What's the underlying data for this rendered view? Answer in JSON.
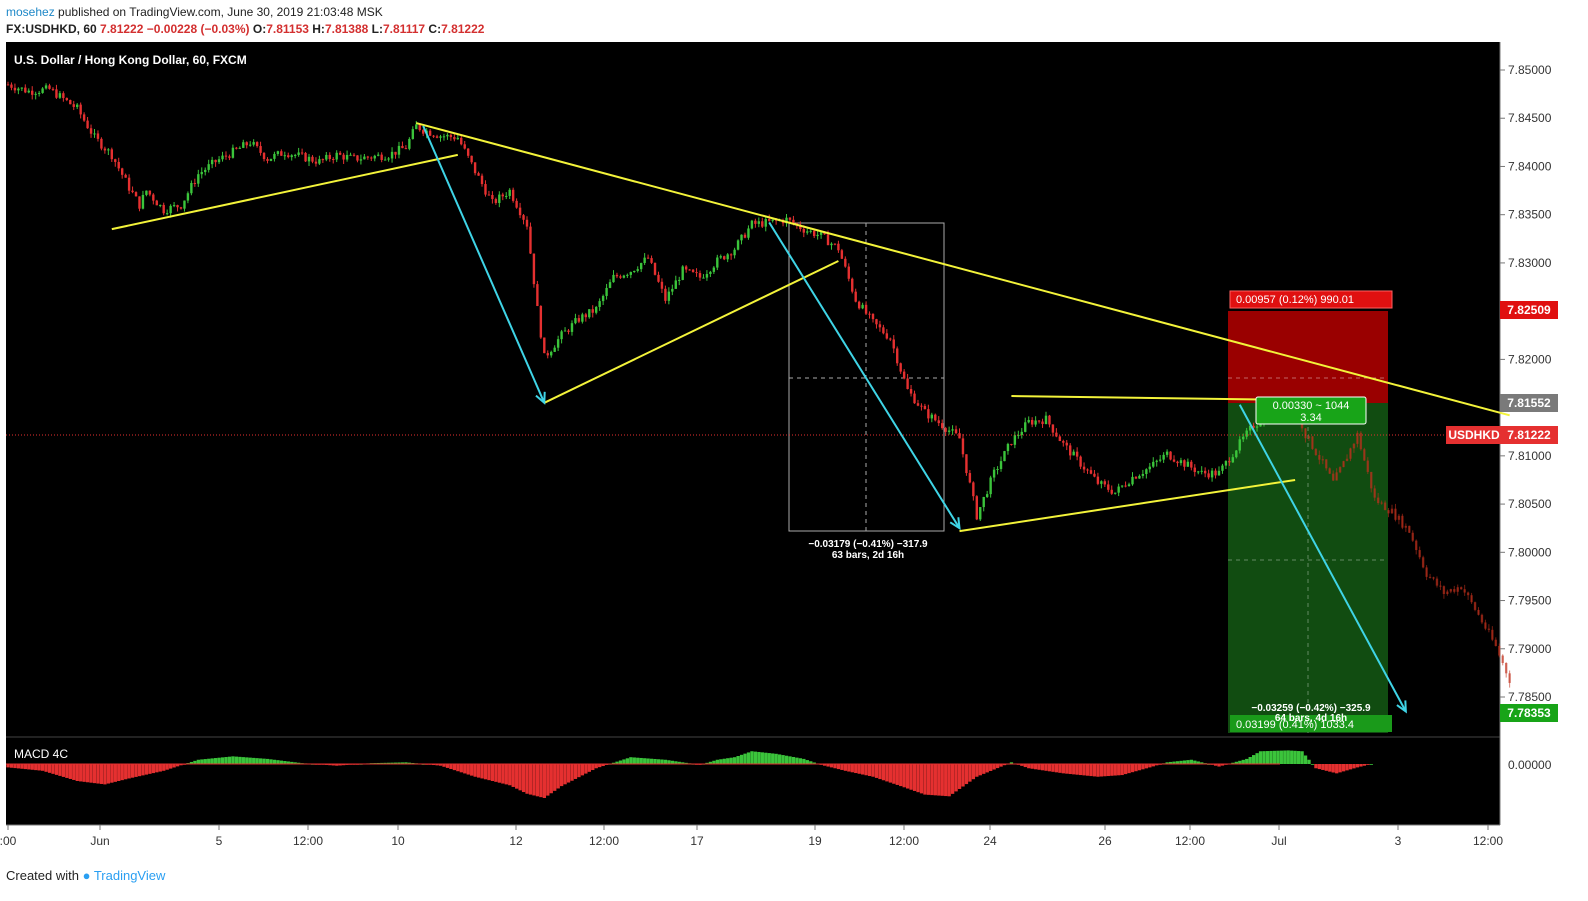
{
  "header": {
    "author": "mosehez",
    "published": "published on TradingView.com, June 30, 2019 21:03:48 MSK",
    "symbol": "FX:USDHKD, 60",
    "last": "7.81222",
    "change": "−0.00228 (−0.03%)",
    "o_label": "O:",
    "o_value": "7.81153",
    "h_label": "H:",
    "h_value": "7.81388",
    "l_label": "L:",
    "l_value": "7.81117",
    "c_label": "C:",
    "c_value": "7.81222"
  },
  "chart": {
    "title": "U.S. Dollar / Hong Kong Dollar, 60, FXCM",
    "indicator_label": "MACD 4C",
    "price_ticks": [
      "7.85000",
      "7.84500",
      "7.84000",
      "7.83500",
      "7.83000",
      "7.82500",
      "7.82000",
      "7.81500",
      "7.81000",
      "7.80500",
      "7.80000",
      "7.79500",
      "7.79000",
      "7.78500"
    ],
    "macd_tick": "0.00000",
    "time_ticks": [
      ":00",
      "Jun",
      "5",
      "12:00",
      "10",
      "12",
      "12:00",
      "17",
      "19",
      "12:00",
      "24",
      "26",
      "12:00",
      "Jul",
      "3",
      "12:00"
    ],
    "price_badges": {
      "stop": "7.82509",
      "entry": "7.81552",
      "current_symbol": "USDHKD",
      "current": "7.81222",
      "target": "7.78353"
    },
    "position": {
      "risk_label": "0.00957 (0.12%) 990.01",
      "entry_label": "0.00330 ~ 1044",
      "ratio_label": "3.34",
      "reward_label": "0.03199 (0.41%) 1033.4"
    },
    "measure1": {
      "line1": "−0.03179 (−0.41%) −317.9",
      "line2": "63 bars, 2d 16h"
    },
    "measure2": {
      "line1": "−0.03259 (−0.42%) −325.9",
      "line2": "64 bars, 4d 16h"
    },
    "colors": {
      "background": "#000000",
      "up": "#3bc43b",
      "down": "#e53030",
      "trend": "#f3f33a",
      "arrow": "#3fd4e6",
      "stop_zone": "#d50000",
      "target_zone": "#1f8a1f"
    }
  },
  "chart_data": {
    "type": "candlestick",
    "ylim": [
      7.7825,
      7.8525
    ],
    "close_path": [
      [
        0,
        7.8485
      ],
      [
        6,
        7.8478
      ],
      [
        12,
        7.848
      ],
      [
        20,
        7.846
      ],
      [
        25,
        7.843
      ],
      [
        30,
        7.8412
      ],
      [
        35,
        7.8378
      ],
      [
        38,
        7.836
      ],
      [
        40,
        7.8375
      ],
      [
        45,
        7.8355
      ],
      [
        50,
        7.836
      ],
      [
        55,
        7.8392
      ],
      [
        60,
        7.8405
      ],
      [
        65,
        7.8415
      ],
      [
        70,
        7.8425
      ],
      [
        75,
        7.8408
      ],
      [
        80,
        7.8415
      ],
      [
        85,
        7.841
      ],
      [
        90,
        7.8405
      ],
      [
        95,
        7.8412
      ],
      [
        100,
        7.8408
      ],
      [
        105,
        7.841
      ],
      [
        110,
        7.8412
      ],
      [
        115,
        7.842
      ],
      [
        118,
        7.8442
      ],
      [
        120,
        7.8438
      ],
      [
        125,
        7.8432
      ],
      [
        130,
        7.843
      ],
      [
        135,
        7.8395
      ],
      [
        140,
        7.8362
      ],
      [
        145,
        7.8375
      ],
      [
        150,
        7.834
      ],
      [
        153,
        7.8252
      ],
      [
        155,
        7.8202
      ],
      [
        160,
        7.8225
      ],
      [
        165,
        7.8242
      ],
      [
        170,
        7.8252
      ],
      [
        175,
        7.8285
      ],
      [
        180,
        7.8292
      ],
      [
        185,
        7.8305
      ],
      [
        190,
        7.8262
      ],
      [
        195,
        7.8292
      ],
      [
        200,
        7.8285
      ],
      [
        205,
        7.8302
      ],
      [
        210,
        7.8315
      ],
      [
        215,
        7.834
      ],
      [
        220,
        7.8342
      ],
      [
        225,
        7.8345
      ],
      [
        230,
        7.8335
      ],
      [
        235,
        7.8328
      ],
      [
        240,
        7.8315
      ],
      [
        245,
        7.8262
      ],
      [
        250,
        7.8238
      ],
      [
        255,
        7.8222
      ],
      [
        260,
        7.8168
      ],
      [
        265,
        7.8145
      ],
      [
        270,
        7.8132
      ],
      [
        275,
        7.8118
      ],
      [
        280,
        7.8038
      ],
      [
        285,
        7.8082
      ],
      [
        290,
        7.8115
      ],
      [
        295,
        7.8135
      ],
      [
        300,
        7.8138
      ],
      [
        305,
        7.8112
      ],
      [
        310,
        7.8092
      ],
      [
        315,
        7.8072
      ],
      [
        320,
        7.8062
      ],
      [
        325,
        7.8078
      ],
      [
        330,
        7.8088
      ],
      [
        335,
        7.8102
      ],
      [
        340,
        7.8092
      ],
      [
        345,
        7.8082
      ],
      [
        350,
        7.8082
      ],
      [
        355,
        7.8108
      ],
      [
        360,
        7.8132
      ],
      [
        365,
        7.8142
      ],
      [
        370,
        7.8147
      ],
      [
        372,
        7.8152
      ],
      [
        375,
        7.8122
      ],
      [
        380,
        7.8092
      ],
      [
        383,
        7.8072
      ],
      [
        386,
        7.8092
      ],
      [
        390,
        7.8122
      ],
      [
        395,
        7.8055
      ],
      [
        400,
        7.8042
      ],
      [
        405,
        7.8022
      ],
      [
        410,
        7.7978
      ],
      [
        415,
        7.7958
      ],
      [
        420,
        7.7965
      ],
      [
        425,
        7.7935
      ],
      [
        430,
        7.7902
      ],
      [
        434,
        7.7868
      ]
    ],
    "macd": [
      [
        0,
        -0.4
      ],
      [
        10,
        -0.8
      ],
      [
        20,
        -2.0
      ],
      [
        28,
        -2.4
      ],
      [
        35,
        -1.7
      ],
      [
        45,
        -0.8
      ],
      [
        55,
        0.5
      ],
      [
        65,
        0.9
      ],
      [
        75,
        0.6
      ],
      [
        85,
        0.1
      ],
      [
        95,
        -0.2
      ],
      [
        105,
        0.1
      ],
      [
        115,
        0.2
      ],
      [
        125,
        -0.2
      ],
      [
        135,
        -1.5
      ],
      [
        145,
        -2.5
      ],
      [
        150,
        -3.5
      ],
      [
        155,
        -4.0
      ],
      [
        160,
        -2.6
      ],
      [
        170,
        -0.5
      ],
      [
        180,
        0.8
      ],
      [
        190,
        0.5
      ],
      [
        200,
        -0.1
      ],
      [
        205,
        0.5
      ],
      [
        210,
        0.8
      ],
      [
        215,
        1.5
      ],
      [
        222,
        1.2
      ],
      [
        230,
        0.6
      ],
      [
        235,
        -0.1
      ],
      [
        242,
        -0.8
      ],
      [
        250,
        -1.5
      ],
      [
        258,
        -2.6
      ],
      [
        265,
        -3.6
      ],
      [
        272,
        -3.8
      ],
      [
        280,
        -1.5
      ],
      [
        290,
        0.2
      ],
      [
        295,
        -0.5
      ],
      [
        305,
        -1.1
      ],
      [
        315,
        -1.5
      ],
      [
        322,
        -1.3
      ],
      [
        330,
        -0.4
      ],
      [
        335,
        0.2
      ],
      [
        342,
        0.5
      ],
      [
        350,
        -0.3
      ],
      [
        358,
        0.6
      ],
      [
        362,
        1.5
      ],
      [
        370,
        1.6
      ],
      [
        374,
        1.5
      ],
      [
        378,
        -0.5
      ],
      [
        384,
        -1.1
      ],
      [
        390,
        -0.4
      ],
      [
        394,
        0
      ]
    ],
    "trendlines": [
      {
        "from": [
          30,
          7.8335
        ],
        "to": [
          130,
          7.8412
        ]
      },
      {
        "from": [
          118,
          7.8445
        ],
        "to": [
          434,
          7.8142
        ]
      },
      {
        "from": [
          155,
          7.8155
        ],
        "to": [
          240,
          7.8302
        ]
      },
      {
        "from": [
          275,
          7.8022
        ],
        "to": [
          372,
          7.8075
        ]
      },
      {
        "from": [
          290,
          7.8162
        ],
        "to": [
          372,
          7.8158
        ]
      }
    ],
    "arrows": [
      {
        "from": [
          120,
          7.8442
        ],
        "to": [
          155,
          7.8155
        ]
      },
      {
        "from": [
          220,
          7.8342
        ],
        "to": [
          275,
          7.8025
        ]
      },
      {
        "from": [
          356,
          7.8153
        ],
        "to": [
          404,
          7.7835
        ]
      }
    ],
    "long_short_position": {
      "entry": 7.81552,
      "stop": 7.82509,
      "target": 7.78353
    }
  }
}
